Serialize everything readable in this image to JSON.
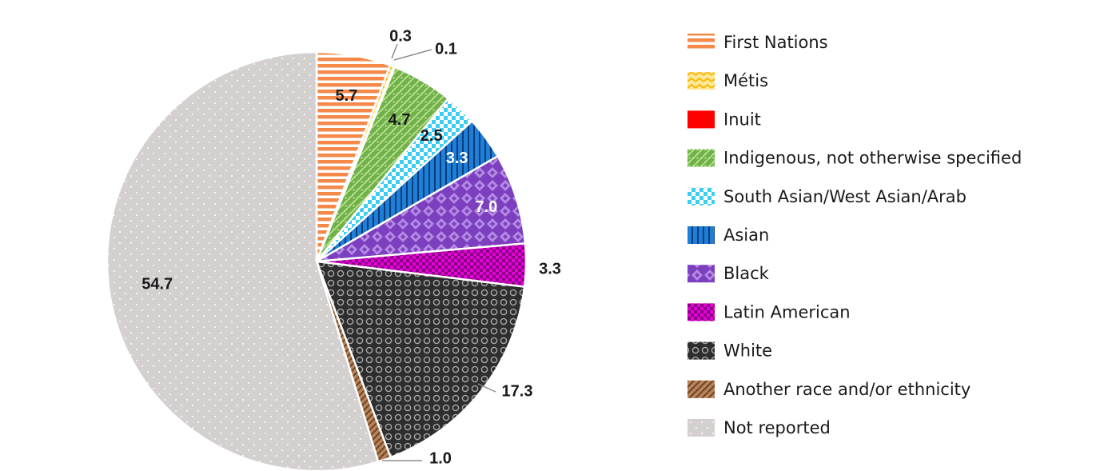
{
  "chart_data": {
    "type": "pie",
    "title": "",
    "legend_position": "right",
    "slices": [
      {
        "label": "First Nations",
        "value": 5.7,
        "value_label": "5.7",
        "color": "#f4894a",
        "pattern": "hstripes"
      },
      {
        "label": "Métis",
        "value": 0.3,
        "value_label": "0.3",
        "color": "#ffc93c",
        "pattern": "zigzag"
      },
      {
        "label": "Inuit",
        "value": 0.1,
        "value_label": "0.1",
        "color": "#ff0000",
        "pattern": "solid"
      },
      {
        "label": "Indigenous, not otherwise specified",
        "value": 4.7,
        "value_label": "4.7",
        "color": "#6fb04a",
        "pattern": "weave"
      },
      {
        "label": "South Asian/West Asian/Arab",
        "value": 2.5,
        "value_label": "2.5",
        "color": "#3ccdf5",
        "pattern": "checker"
      },
      {
        "label": "Asian",
        "value": 3.3,
        "value_label": "3.3",
        "color": "#1f7fd6",
        "pattern": "vstripes"
      },
      {
        "label": "Black",
        "value": 7.0,
        "value_label": "7.0",
        "color": "#7b3fbf",
        "pattern": "diamonds"
      },
      {
        "label": "Latin American",
        "value": 3.3,
        "value_label": "3.3",
        "color": "#e600d8",
        "pattern": "smallcheck"
      },
      {
        "label": "White",
        "value": 17.3,
        "value_label": "17.3",
        "color": "#3a3a3a",
        "pattern": "circles"
      },
      {
        "label": "Another race and/or ethnicity",
        "value": 1.0,
        "value_label": "1.0",
        "color": "#b8835a",
        "pattern": "diagonal"
      },
      {
        "label": "Not reported",
        "value": 54.7,
        "value_label": "54.7",
        "color": "#d4d0d0",
        "pattern": "dots"
      }
    ]
  }
}
